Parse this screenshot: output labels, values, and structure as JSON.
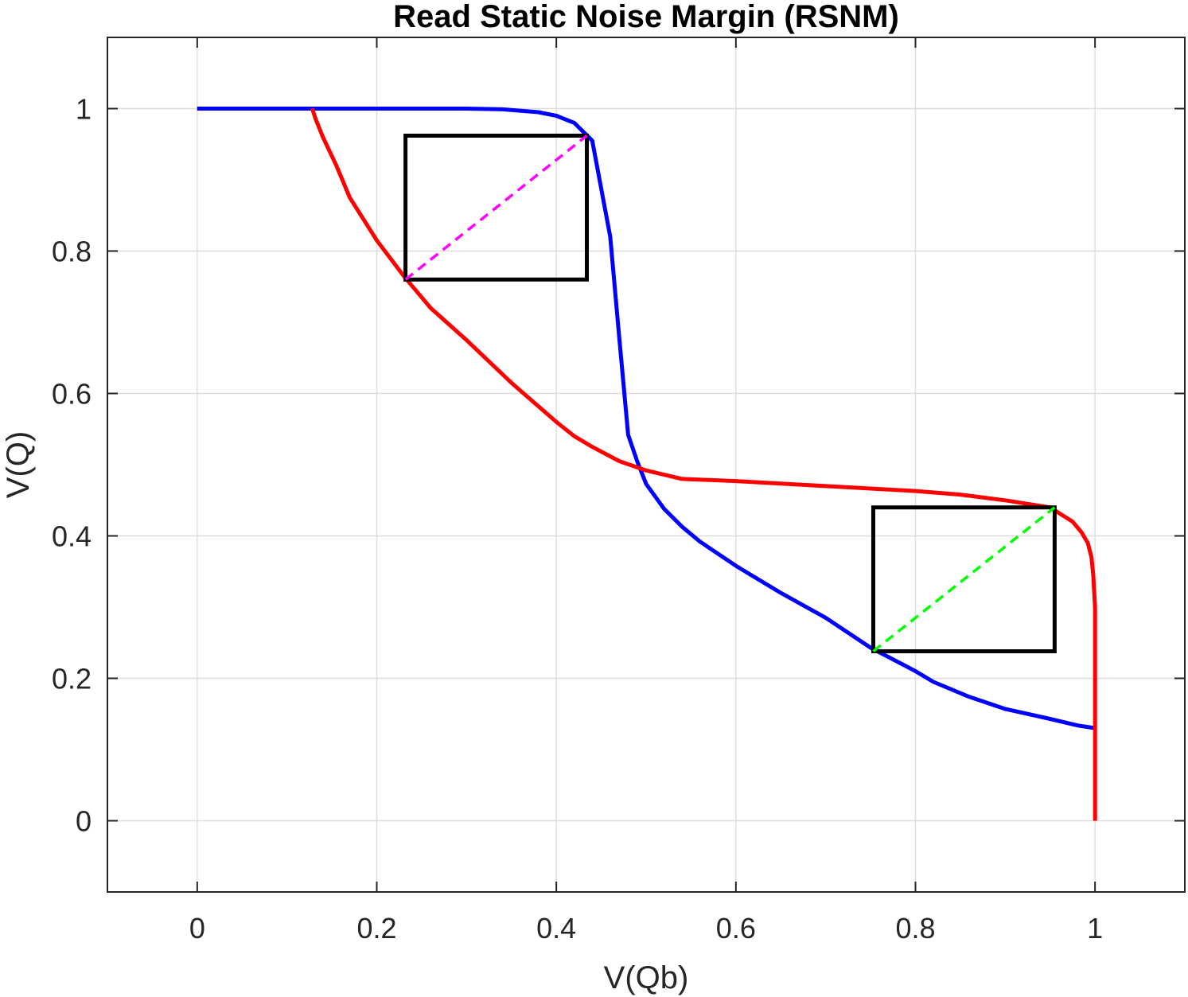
{
  "chart_data": {
    "type": "line",
    "title": "Read Static Noise Margin (RSNM)",
    "xlabel": "V(Qb)",
    "ylabel": "V(Q)",
    "xlim": [
      -0.1,
      1.1
    ],
    "ylim": [
      -0.1,
      1.1
    ],
    "xticks": [
      0,
      0.2,
      0.4,
      0.6,
      0.8,
      1
    ],
    "xtick_labels": [
      "0",
      "0.2",
      "0.4",
      "0.6",
      "0.8",
      "1"
    ],
    "yticks": [
      0,
      0.2,
      0.4,
      0.6,
      0.8,
      1
    ],
    "ytick_labels": [
      "0",
      "0.2",
      "0.4",
      "0.6",
      "0.8",
      "1"
    ],
    "grid": true,
    "series": [
      {
        "color": "#0000ff",
        "points": [
          [
            0,
            1
          ],
          [
            0.1,
            1
          ],
          [
            0.2,
            1
          ],
          [
            0.3,
            1
          ],
          [
            0.34,
            0.999
          ],
          [
            0.38,
            0.995
          ],
          [
            0.4,
            0.99
          ],
          [
            0.42,
            0.98
          ],
          [
            0.44,
            0.955
          ],
          [
            0.46,
            0.82
          ],
          [
            0.47,
            0.68
          ],
          [
            0.48,
            0.542
          ],
          [
            0.49,
            0.505
          ],
          [
            0.5,
            0.473
          ],
          [
            0.52,
            0.438
          ],
          [
            0.54,
            0.413
          ],
          [
            0.56,
            0.392
          ],
          [
            0.6,
            0.358
          ],
          [
            0.65,
            0.32
          ],
          [
            0.7,
            0.285
          ],
          [
            0.75,
            0.243
          ],
          [
            0.8,
            0.21
          ],
          [
            0.82,
            0.195
          ],
          [
            0.86,
            0.174
          ],
          [
            0.9,
            0.157
          ],
          [
            0.95,
            0.143
          ],
          [
            0.98,
            0.134
          ],
          [
            1,
            0.13
          ]
        ]
      },
      {
        "color": "#ff0000",
        "points": [
          [
            0.128,
            1
          ],
          [
            0.132,
            0.985
          ],
          [
            0.14,
            0.96
          ],
          [
            0.155,
            0.92
          ],
          [
            0.17,
            0.875
          ],
          [
            0.2,
            0.815
          ],
          [
            0.23,
            0.765
          ],
          [
            0.26,
            0.72
          ],
          [
            0.3,
            0.675
          ],
          [
            0.35,
            0.615
          ],
          [
            0.4,
            0.56
          ],
          [
            0.42,
            0.54
          ],
          [
            0.44,
            0.525
          ],
          [
            0.47,
            0.505
          ],
          [
            0.5,
            0.492
          ],
          [
            0.54,
            0.48
          ],
          [
            0.6,
            0.477
          ],
          [
            0.7,
            0.47
          ],
          [
            0.8,
            0.463
          ],
          [
            0.85,
            0.458
          ],
          [
            0.9,
            0.45
          ],
          [
            0.95,
            0.44
          ],
          [
            0.975,
            0.42
          ],
          [
            0.985,
            0.405
          ],
          [
            0.992,
            0.39
          ],
          [
            0.996,
            0.37
          ],
          [
            0.998,
            0.345
          ],
          [
            1,
            0.3
          ],
          [
            1,
            0.2
          ],
          [
            1,
            0.1
          ],
          [
            1,
            0
          ]
        ]
      }
    ],
    "squares": [
      {
        "color": "#000000",
        "x": [
          0.232,
          0.434
        ],
        "y": [
          0.76,
          0.962
        ]
      },
      {
        "color": "#000000",
        "x": [
          0.753,
          0.955
        ],
        "y": [
          0.238,
          0.44
        ]
      }
    ],
    "diagonals": [
      {
        "color": "#ff00ff",
        "from": [
          0.232,
          0.76
        ],
        "to": [
          0.434,
          0.962
        ]
      },
      {
        "color": "#00ff00",
        "from": [
          0.753,
          0.238
        ],
        "to": [
          0.955,
          0.44
        ]
      }
    ]
  }
}
